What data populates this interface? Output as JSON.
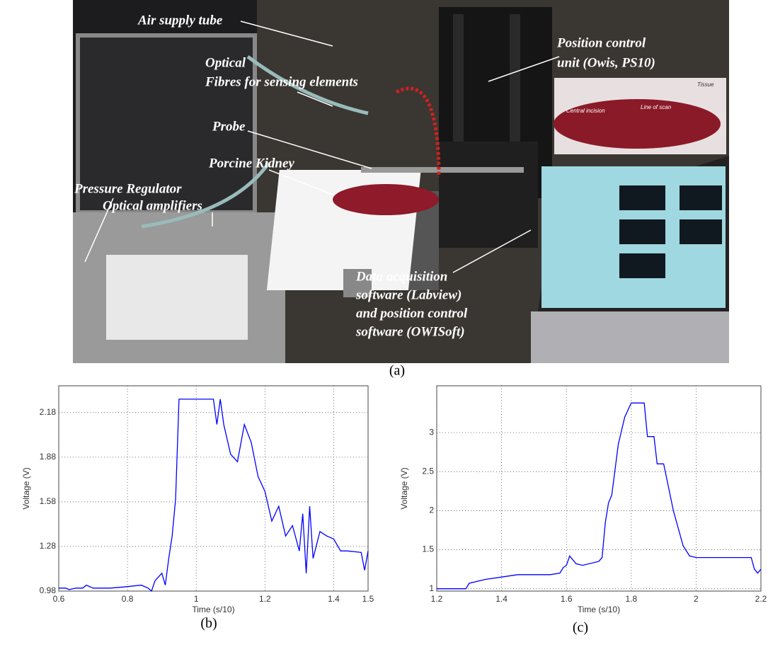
{
  "photo": {
    "labels": [
      {
        "lines": [
          "Air supply tube"
        ]
      },
      {
        "lines": [
          "Optical",
          "Fibres for sensing elements"
        ]
      },
      {
        "lines": [
          "Probe"
        ]
      },
      {
        "lines": [
          "Porcine Kidney"
        ]
      },
      {
        "lines": [
          "Pressure Regulator"
        ]
      },
      {
        "lines": [
          "Optical amplifiers"
        ]
      },
      {
        "lines": [
          "Position control",
          "unit (Owis, PS10)"
        ]
      },
      {
        "lines": [
          "Data acquisition",
          "software (Labview)",
          "and position control",
          "software (OWISoft)"
        ]
      }
    ],
    "inset_labels": [
      "Central incision",
      "Line of scan",
      "Tissue"
    ]
  },
  "captions": [
    "(a)",
    "(b)",
    "(c)"
  ],
  "chart_data": [
    {
      "type": "line",
      "xlabel": "Time (s/10)",
      "ylabel": "Voltage (V)",
      "color": "#0000ff",
      "grid": true,
      "xlim": [
        0.6,
        1.5
      ],
      "ylim": [
        0.98,
        2.36
      ],
      "xticks": [
        0.6,
        0.8,
        1,
        1.2,
        1.4,
        1.5
      ],
      "yticks": [
        0.98,
        1.28,
        1.58,
        1.88,
        2.18
      ],
      "x": [
        0.6,
        0.62,
        0.63,
        0.65,
        0.67,
        0.68,
        0.7,
        0.75,
        0.8,
        0.84,
        0.86,
        0.87,
        0.88,
        0.9,
        0.91,
        0.92,
        0.93,
        0.94,
        0.95,
        1.0,
        1.05,
        1.06,
        1.07,
        1.08,
        1.1,
        1.12,
        1.14,
        1.16,
        1.18,
        1.2,
        1.22,
        1.24,
        1.26,
        1.28,
        1.3,
        1.31,
        1.32,
        1.33,
        1.34,
        1.36,
        1.38,
        1.4,
        1.42,
        1.44,
        1.48,
        1.49,
        1.5
      ],
      "values": [
        1.0,
        1.0,
        0.99,
        1.0,
        1.0,
        1.02,
        1.0,
        1.0,
        1.01,
        1.02,
        1.0,
        0.98,
        1.05,
        1.1,
        1.02,
        1.2,
        1.35,
        1.6,
        2.27,
        2.27,
        2.27,
        2.1,
        2.27,
        2.1,
        1.9,
        1.85,
        2.1,
        1.98,
        1.75,
        1.65,
        1.45,
        1.55,
        1.35,
        1.42,
        1.25,
        1.5,
        1.1,
        1.55,
        1.2,
        1.38,
        1.35,
        1.33,
        1.25,
        1.25,
        1.24,
        1.12,
        1.25
      ]
    },
    {
      "type": "line",
      "xlabel": "Time (s/10)",
      "ylabel": "Voltage (V)",
      "color": "#0000ff",
      "grid": true,
      "xlim": [
        1.2,
        2.2
      ],
      "ylim": [
        0.97,
        3.6
      ],
      "xticks": [
        1.2,
        1.4,
        1.6,
        1.8,
        2,
        2.2
      ],
      "yticks": [
        1,
        1.5,
        2,
        2.5,
        3
      ],
      "x": [
        1.2,
        1.29,
        1.3,
        1.35,
        1.4,
        1.45,
        1.5,
        1.55,
        1.58,
        1.59,
        1.6,
        1.61,
        1.63,
        1.65,
        1.7,
        1.71,
        1.72,
        1.73,
        1.74,
        1.76,
        1.78,
        1.8,
        1.84,
        1.85,
        1.87,
        1.88,
        1.9,
        1.93,
        1.96,
        1.98,
        2.0,
        2.1,
        2.17,
        2.18,
        2.19,
        2.2
      ],
      "values": [
        1.0,
        1.0,
        1.07,
        1.12,
        1.15,
        1.18,
        1.18,
        1.18,
        1.2,
        1.27,
        1.3,
        1.42,
        1.32,
        1.3,
        1.35,
        1.4,
        1.85,
        2.1,
        2.2,
        2.85,
        3.2,
        3.38,
        3.38,
        2.95,
        2.95,
        2.6,
        2.6,
        2.0,
        1.55,
        1.42,
        1.4,
        1.4,
        1.4,
        1.25,
        1.2,
        1.25
      ]
    }
  ]
}
